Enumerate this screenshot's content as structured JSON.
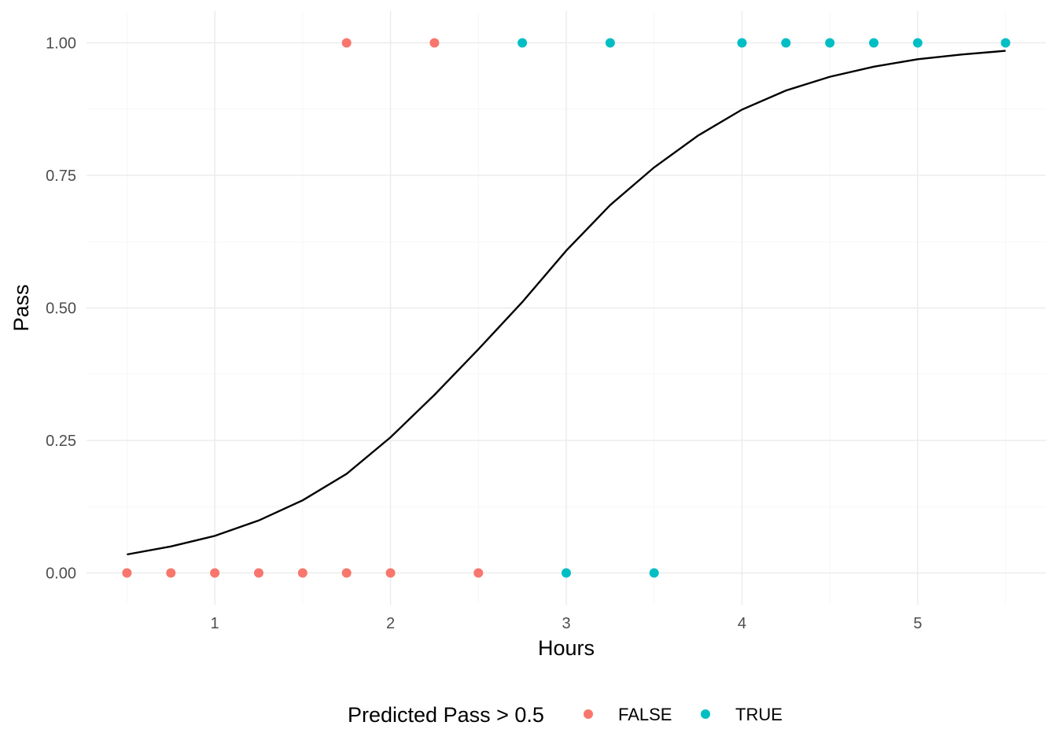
{
  "chart_data": {
    "type": "scatter",
    "title": "",
    "xlabel": "Hours",
    "ylabel": "Pass",
    "xlim": [
      0.27,
      5.73
    ],
    "ylim": [
      -0.06,
      1.06
    ],
    "x_ticks": [
      1,
      2,
      3,
      4,
      5
    ],
    "x_tick_labels": [
      "1",
      "2",
      "3",
      "4",
      "5"
    ],
    "y_ticks": [
      0,
      0.25,
      0.5,
      0.75,
      1
    ],
    "y_tick_labels": [
      "0.00",
      "0.25",
      "0.50",
      "0.75",
      "1.00"
    ],
    "grid": true,
    "legend": {
      "title": "Predicted Pass > 0.5",
      "position": "bottom",
      "entries": [
        {
          "label": "FALSE",
          "color": "#F8766D"
        },
        {
          "label": "TRUE",
          "color": "#00BFC4"
        }
      ]
    },
    "points": [
      {
        "x": 0.5,
        "y": 0,
        "group": "FALSE"
      },
      {
        "x": 0.75,
        "y": 0,
        "group": "FALSE"
      },
      {
        "x": 1.0,
        "y": 0,
        "group": "FALSE"
      },
      {
        "x": 1.25,
        "y": 0,
        "group": "FALSE"
      },
      {
        "x": 1.5,
        "y": 0,
        "group": "FALSE"
      },
      {
        "x": 1.75,
        "y": 0,
        "group": "FALSE"
      },
      {
        "x": 1.75,
        "y": 1,
        "group": "FALSE"
      },
      {
        "x": 2.0,
        "y": 0,
        "group": "FALSE"
      },
      {
        "x": 2.25,
        "y": 1,
        "group": "FALSE"
      },
      {
        "x": 2.5,
        "y": 0,
        "group": "FALSE"
      },
      {
        "x": 2.75,
        "y": 1,
        "group": "TRUE"
      },
      {
        "x": 3.0,
        "y": 0,
        "group": "TRUE"
      },
      {
        "x": 3.25,
        "y": 1,
        "group": "TRUE"
      },
      {
        "x": 3.5,
        "y": 0,
        "group": "TRUE"
      },
      {
        "x": 4.0,
        "y": 1,
        "group": "TRUE"
      },
      {
        "x": 4.25,
        "y": 1,
        "group": "TRUE"
      },
      {
        "x": 4.5,
        "y": 1,
        "group": "TRUE"
      },
      {
        "x": 4.75,
        "y": 1,
        "group": "TRUE"
      },
      {
        "x": 5.0,
        "y": 1,
        "group": "TRUE"
      },
      {
        "x": 5.5,
        "y": 1,
        "group": "TRUE"
      }
    ],
    "curve": {
      "type": "line",
      "color": "#000000",
      "x": [
        0.5,
        0.75,
        1.0,
        1.25,
        1.5,
        1.75,
        2.0,
        2.25,
        2.5,
        2.75,
        3.0,
        3.25,
        3.5,
        3.75,
        4.0,
        4.25,
        4.5,
        4.75,
        5.0,
        5.25,
        5.5
      ],
      "y": [
        0.035,
        0.05,
        0.07,
        0.099,
        0.137,
        0.187,
        0.256,
        0.336,
        0.422,
        0.511,
        0.608,
        0.694,
        0.765,
        0.825,
        0.874,
        0.91,
        0.936,
        0.955,
        0.969,
        0.978,
        0.985
      ]
    }
  }
}
